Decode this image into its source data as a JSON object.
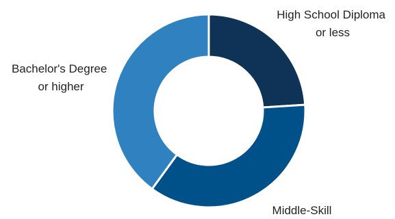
{
  "chart_data": {
    "type": "pie",
    "donut": true,
    "title": "",
    "legend": "none",
    "slices": [
      {
        "label_lines": [
          "High School Diploma",
          "or less"
        ],
        "value": 24,
        "color": "#0e3357"
      },
      {
        "label_lines": [
          "Middle-Skill"
        ],
        "value": 36,
        "color": "#00508a"
      },
      {
        "label_lines": [
          "Bachelor's Degree",
          "or higher"
        ],
        "value": 40,
        "color": "#2f82bf"
      }
    ]
  }
}
